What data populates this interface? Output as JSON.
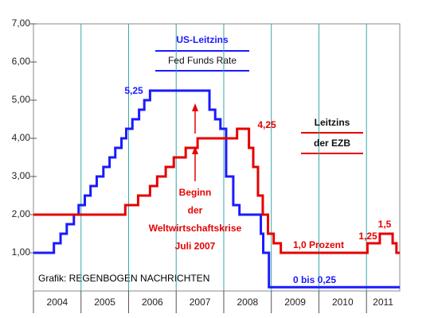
{
  "chart_data": {
    "type": "step-line",
    "xlim": [
      2004,
      2011.7
    ],
    "xticks": [
      2004,
      2005,
      2006,
      2007,
      2008,
      2009,
      2010,
      2011
    ],
    "ylim": [
      0,
      7
    ],
    "yticks": [
      {
        "value": 1,
        "label": "1,00"
      },
      {
        "value": 2,
        "label": "2,00"
      },
      {
        "value": 3,
        "label": "3,00"
      },
      {
        "value": 4,
        "label": "4,00"
      },
      {
        "value": 5,
        "label": "5,00"
      },
      {
        "value": 6,
        "label": "6,00"
      },
      {
        "value": 7,
        "label": "7,00"
      }
    ],
    "series": [
      {
        "name_lines": [
          "US-Leitzins",
          "Fed Funds Rate"
        ],
        "color": "#1a1aff",
        "x": [
          2004,
          2004.43,
          2004.57,
          2004.7,
          2004.85,
          2004.95,
          2005.08,
          2005.2,
          2005.33,
          2005.47,
          2005.6,
          2005.72,
          2005.85,
          2005.95,
          2006.08,
          2006.22,
          2006.33,
          2006.45,
          2007.7,
          2007.82,
          2007.93,
          2008.05,
          2008.2,
          2008.33,
          2008.78,
          2008.83,
          2008.95
        ],
        "values": [
          1.0,
          1.25,
          1.5,
          1.75,
          2.0,
          2.25,
          2.5,
          2.75,
          3.0,
          3.25,
          3.5,
          3.75,
          4.0,
          4.25,
          4.5,
          4.75,
          5.0,
          5.25,
          4.75,
          4.5,
          4.25,
          3.0,
          2.25,
          2.0,
          1.5,
          1.0,
          0.1
        ]
      },
      {
        "name_lines": [
          "Leitzins",
          "der EZB"
        ],
        "color": "#e60000",
        "x": [
          2004,
          2005.93,
          2006.2,
          2006.45,
          2006.6,
          2006.78,
          2006.95,
          2007.2,
          2007.45,
          2008.28,
          2008.53,
          2008.62,
          2008.72,
          2008.82,
          2008.93,
          2009.05,
          2009.2,
          2011.02,
          2011.28,
          2011.55,
          2011.63
        ],
        "values": [
          2.0,
          2.25,
          2.5,
          2.75,
          3.0,
          3.25,
          3.5,
          3.75,
          4.0,
          4.25,
          3.75,
          3.25,
          2.5,
          2.0,
          1.5,
          1.25,
          1.0,
          1.25,
          1.5,
          1.25,
          1.0
        ]
      }
    ],
    "annotations": [
      "5,25",
      "4,25",
      "1,0 Prozent",
      "1,25",
      "1,5",
      "0 bis 0,25"
    ],
    "event_lines": [
      "Beginn",
      "der",
      "Weltwirtschaftskrise",
      "Juli 2007"
    ],
    "source": "Grafik: REGENBOGEN NACHRICHTEN"
  }
}
